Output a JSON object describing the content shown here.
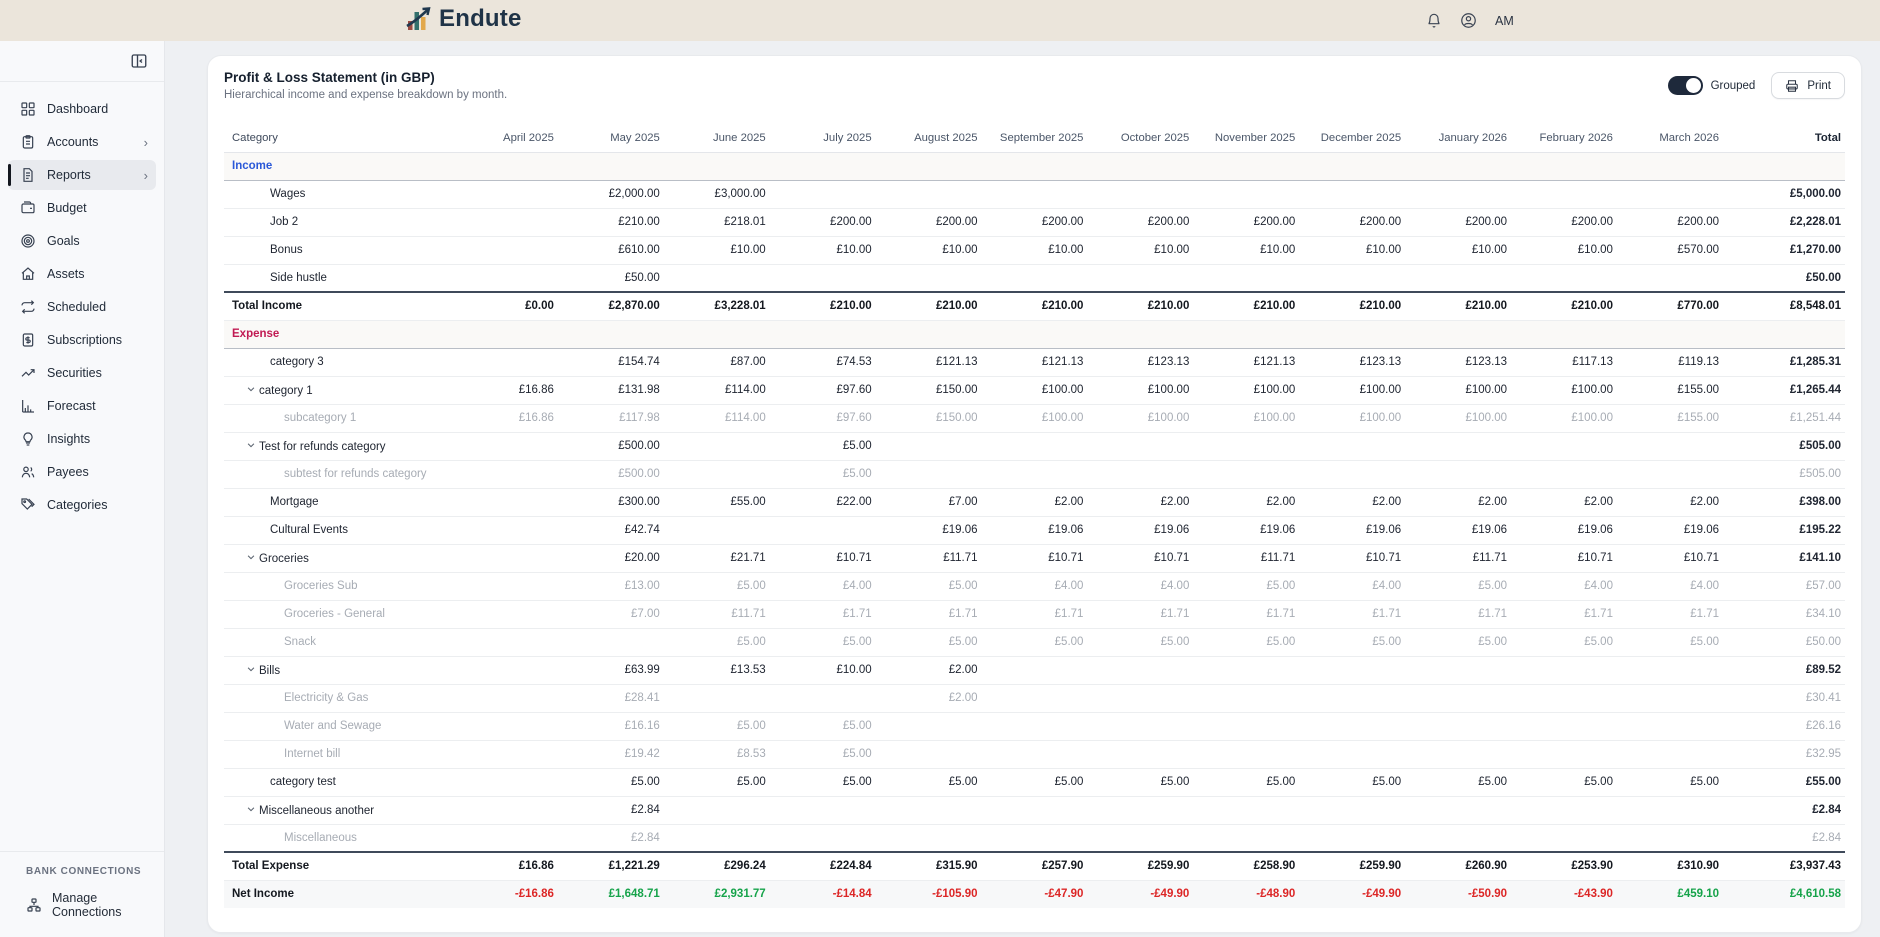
{
  "app": {
    "logo_text": "Endute",
    "user_initials": "AM"
  },
  "colors": {
    "income": "#2b59d8",
    "expense": "#c11a53",
    "positive": "#16a34a",
    "negative": "#dc2626",
    "topbar_bg": "#ebe5db",
    "toggle_on": "#1e293b"
  },
  "sidebar": {
    "items": [
      {
        "label": "Dashboard",
        "icon": "dashboard",
        "chevron": false,
        "active": false
      },
      {
        "label": "Accounts",
        "icon": "accounts",
        "chevron": true,
        "active": false
      },
      {
        "label": "Reports",
        "icon": "reports",
        "chevron": true,
        "active": true
      },
      {
        "label": "Budget",
        "icon": "budget",
        "chevron": false,
        "active": false
      },
      {
        "label": "Goals",
        "icon": "goals",
        "chevron": false,
        "active": false
      },
      {
        "label": "Assets",
        "icon": "assets",
        "chevron": false,
        "active": false
      },
      {
        "label": "Scheduled",
        "icon": "scheduled",
        "chevron": false,
        "active": false
      },
      {
        "label": "Subscriptions",
        "icon": "subscriptions",
        "chevron": false,
        "active": false
      },
      {
        "label": "Securities",
        "icon": "securities",
        "chevron": false,
        "active": false
      },
      {
        "label": "Forecast",
        "icon": "forecast",
        "chevron": false,
        "active": false
      },
      {
        "label": "Insights",
        "icon": "insights",
        "chevron": false,
        "active": false
      },
      {
        "label": "Payees",
        "icon": "payees",
        "chevron": false,
        "active": false
      },
      {
        "label": "Categories",
        "icon": "categories",
        "chevron": false,
        "active": false
      }
    ],
    "section_label": "BANK CONNECTIONS",
    "manage_connections": "Manage Connections"
  },
  "report": {
    "title": "Profit & Loss Statement (in GBP)",
    "subtitle": "Hierarchical income and expense breakdown by month.",
    "grouped_label": "Grouped",
    "grouped_on": true,
    "print_label": "Print"
  },
  "table": {
    "columns": [
      "Category",
      "April 2025",
      "May 2025",
      "June 2025",
      "July 2025",
      "August 2025",
      "September 2025",
      "October 2025",
      "November 2025",
      "December 2025",
      "January 2026",
      "February 2026",
      "March 2026",
      "Total"
    ],
    "rows": [
      {
        "type": "section",
        "label": "Income",
        "color_key": "income",
        "values": [
          "",
          "",
          "",
          "",
          "",
          "",
          "",
          "",
          "",
          "",
          "",
          "",
          ""
        ]
      },
      {
        "type": "item",
        "label": "Wages",
        "values": [
          "",
          "£2,000.00",
          "£3,000.00",
          "",
          "",
          "",
          "",
          "",
          "",
          "",
          "",
          "",
          "£5,000.00"
        ]
      },
      {
        "type": "item",
        "label": "Job 2",
        "values": [
          "",
          "£210.00",
          "£218.01",
          "£200.00",
          "£200.00",
          "£200.00",
          "£200.00",
          "£200.00",
          "£200.00",
          "£200.00",
          "£200.00",
          "£200.00",
          "£2,228.01"
        ]
      },
      {
        "type": "item",
        "label": "Bonus",
        "values": [
          "",
          "£610.00",
          "£10.00",
          "£10.00",
          "£10.00",
          "£10.00",
          "£10.00",
          "£10.00",
          "£10.00",
          "£10.00",
          "£10.00",
          "£570.00",
          "£1,270.00"
        ]
      },
      {
        "type": "item",
        "label": "Side hustle",
        "values": [
          "",
          "£50.00",
          "",
          "",
          "",
          "",
          "",
          "",
          "",
          "",
          "",
          "",
          "£50.00"
        ]
      },
      {
        "type": "total",
        "label": "Total Income",
        "values": [
          "£0.00",
          "£2,870.00",
          "£3,228.01",
          "£210.00",
          "£210.00",
          "£210.00",
          "£210.00",
          "£210.00",
          "£210.00",
          "£210.00",
          "£210.00",
          "£770.00",
          "£8,548.01"
        ]
      },
      {
        "type": "section",
        "label": "Expense",
        "color_key": "expense",
        "values": [
          "",
          "",
          "",
          "",
          "",
          "",
          "",
          "",
          "",
          "",
          "",
          "",
          ""
        ]
      },
      {
        "type": "item",
        "label": "category 3",
        "values": [
          "",
          "£154.74",
          "£87.00",
          "£74.53",
          "£121.13",
          "£121.13",
          "£123.13",
          "£121.13",
          "£123.13",
          "£123.13",
          "£117.13",
          "£119.13",
          "£1,285.31"
        ]
      },
      {
        "type": "parent",
        "label": "category 1",
        "values": [
          "£16.86",
          "£131.98",
          "£114.00",
          "£97.60",
          "£150.00",
          "£100.00",
          "£100.00",
          "£100.00",
          "£100.00",
          "£100.00",
          "£100.00",
          "£155.00",
          "£1,265.44"
        ]
      },
      {
        "type": "child",
        "label": "subcategory 1",
        "values": [
          "£16.86",
          "£117.98",
          "£114.00",
          "£97.60",
          "£150.00",
          "£100.00",
          "£100.00",
          "£100.00",
          "£100.00",
          "£100.00",
          "£100.00",
          "£155.00",
          "£1,251.44"
        ]
      },
      {
        "type": "parent",
        "label": "Test for refunds category",
        "values": [
          "",
          "£500.00",
          "",
          "£5.00",
          "",
          "",
          "",
          "",
          "",
          "",
          "",
          "",
          "£505.00"
        ]
      },
      {
        "type": "child",
        "label": "subtest for refunds category",
        "values": [
          "",
          "£500.00",
          "",
          "£5.00",
          "",
          "",
          "",
          "",
          "",
          "",
          "",
          "",
          "£505.00"
        ]
      },
      {
        "type": "item",
        "label": "Mortgage",
        "values": [
          "",
          "£300.00",
          "£55.00",
          "£22.00",
          "£7.00",
          "£2.00",
          "£2.00",
          "£2.00",
          "£2.00",
          "£2.00",
          "£2.00",
          "£2.00",
          "£398.00"
        ]
      },
      {
        "type": "item",
        "label": "Cultural Events",
        "values": [
          "",
          "£42.74",
          "",
          "",
          "£19.06",
          "£19.06",
          "£19.06",
          "£19.06",
          "£19.06",
          "£19.06",
          "£19.06",
          "£19.06",
          "£195.22"
        ]
      },
      {
        "type": "parent",
        "label": "Groceries",
        "values": [
          "",
          "£20.00",
          "£21.71",
          "£10.71",
          "£11.71",
          "£10.71",
          "£10.71",
          "£11.71",
          "£10.71",
          "£11.71",
          "£10.71",
          "£10.71",
          "£141.10"
        ]
      },
      {
        "type": "child",
        "label": "Groceries Sub",
        "values": [
          "",
          "£13.00",
          "£5.00",
          "£4.00",
          "£5.00",
          "£4.00",
          "£4.00",
          "£5.00",
          "£4.00",
          "£5.00",
          "£4.00",
          "£4.00",
          "£57.00"
        ]
      },
      {
        "type": "child",
        "label": "Groceries - General",
        "values": [
          "",
          "£7.00",
          "£11.71",
          "£1.71",
          "£1.71",
          "£1.71",
          "£1.71",
          "£1.71",
          "£1.71",
          "£1.71",
          "£1.71",
          "£1.71",
          "£34.10"
        ]
      },
      {
        "type": "child",
        "label": "Snack",
        "values": [
          "",
          "",
          "£5.00",
          "£5.00",
          "£5.00",
          "£5.00",
          "£5.00",
          "£5.00",
          "£5.00",
          "£5.00",
          "£5.00",
          "£5.00",
          "£50.00"
        ]
      },
      {
        "type": "parent",
        "label": "Bills",
        "values": [
          "",
          "£63.99",
          "£13.53",
          "£10.00",
          "£2.00",
          "",
          "",
          "",
          "",
          "",
          "",
          "",
          "£89.52"
        ]
      },
      {
        "type": "child",
        "label": "Electricity & Gas",
        "values": [
          "",
          "£28.41",
          "",
          "",
          "£2.00",
          "",
          "",
          "",
          "",
          "",
          "",
          "",
          "£30.41"
        ]
      },
      {
        "type": "child",
        "label": "Water and Sewage",
        "values": [
          "",
          "£16.16",
          "£5.00",
          "£5.00",
          "",
          "",
          "",
          "",
          "",
          "",
          "",
          "",
          "£26.16"
        ]
      },
      {
        "type": "child",
        "label": "Internet bill",
        "values": [
          "",
          "£19.42",
          "£8.53",
          "£5.00",
          "",
          "",
          "",
          "",
          "",
          "",
          "",
          "",
          "£32.95"
        ]
      },
      {
        "type": "item",
        "label": "category test",
        "values": [
          "",
          "£5.00",
          "£5.00",
          "£5.00",
          "£5.00",
          "£5.00",
          "£5.00",
          "£5.00",
          "£5.00",
          "£5.00",
          "£5.00",
          "£5.00",
          "£55.00"
        ]
      },
      {
        "type": "parent",
        "label": "Miscellaneous another",
        "values": [
          "",
          "£2.84",
          "",
          "",
          "",
          "",
          "",
          "",
          "",
          "",
          "",
          "",
          "£2.84"
        ]
      },
      {
        "type": "child",
        "label": "Miscellaneous",
        "values": [
          "",
          "£2.84",
          "",
          "",
          "",
          "",
          "",
          "",
          "",
          "",
          "",
          "",
          "£2.84"
        ]
      },
      {
        "type": "total",
        "label": "Total Expense",
        "values": [
          "£16.86",
          "£1,221.29",
          "£296.24",
          "£224.84",
          "£315.90",
          "£257.90",
          "£259.90",
          "£258.90",
          "£259.90",
          "£260.90",
          "£253.90",
          "£310.90",
          "£3,937.43"
        ]
      },
      {
        "type": "net",
        "label": "Net Income",
        "values": [
          "-£16.86",
          "£1,648.71",
          "£2,931.77",
          "-£14.84",
          "-£105.90",
          "-£47.90",
          "-£49.90",
          "-£48.90",
          "-£49.90",
          "-£50.90",
          "-£43.90",
          "£459.10",
          "£4,610.58"
        ]
      }
    ]
  }
}
